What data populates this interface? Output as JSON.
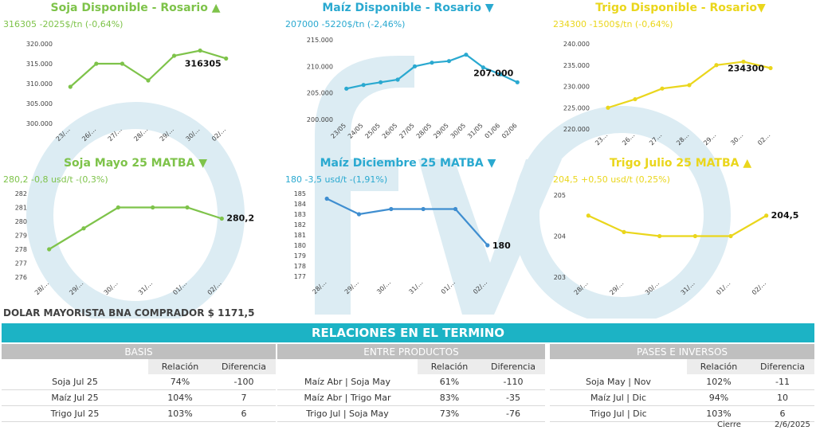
{
  "colors": {
    "soja": "#7ec34a",
    "maiz": "#2aa9d0",
    "trigo": "#ead61c",
    "maiz2": "#3f8ed0",
    "header": "#1cb3c5",
    "watermark": "#dcecf3"
  },
  "chart_data": [
    {
      "type": "line",
      "title": "Soja Disponible - Rosario ▲",
      "subtitle": "316305 -2025$/tn (-0,64%)",
      "categories": [
        "23/…",
        "26/…",
        "27/…",
        "28/…",
        "29/…",
        "30/…",
        "02/…"
      ],
      "values": [
        309200,
        315000,
        315000,
        310800,
        317000,
        318300,
        316305
      ],
      "ylim": [
        300000,
        320000
      ],
      "yticks": [
        "300.000",
        "305.000",
        "310.000",
        "315.000",
        "320.000"
      ],
      "ytickvals": [
        300000,
        305000,
        310000,
        315000,
        320000
      ],
      "last_label": "316305"
    },
    {
      "type": "line",
      "title": "Maíz Disponible - Rosario ▼",
      "subtitle": "207000 -5220$/tn (-2,46%)",
      "categories": [
        "23/05",
        "24/05",
        "25/05",
        "26/05",
        "27/05",
        "28/05",
        "29/05",
        "30/05",
        "31/05",
        "01/06",
        "02/06"
      ],
      "values": [
        205800,
        206500,
        207000,
        207500,
        210000,
        210700,
        211000,
        212200,
        209800,
        208500,
        207000
      ],
      "ylim": [
        200000,
        215000
      ],
      "yticks": [
        "200.000",
        "205.000",
        "210.000",
        "215.000"
      ],
      "ytickvals": [
        200000,
        205000,
        210000,
        215000
      ],
      "last_label": "207.000"
    },
    {
      "type": "line",
      "title": "Trigo Disponible - Rosario▼",
      "subtitle": "234300 -1500$/tn (-0,64%)",
      "categories": [
        "23…",
        "26…",
        "27…",
        "28…",
        "29…",
        "30…",
        "02…"
      ],
      "values": [
        225000,
        227000,
        229500,
        230300,
        235000,
        235800,
        234300
      ],
      "ylim": [
        220000,
        240000
      ],
      "yticks": [
        "220.000",
        "225.000",
        "230.000",
        "235.000",
        "240.000"
      ],
      "ytickvals": [
        220000,
        225000,
        230000,
        235000,
        240000
      ],
      "last_label": "234300"
    },
    {
      "type": "line",
      "title": "Soja Mayo 25 MATBA ▼",
      "subtitle": "280,2 -0,8 usd/t -(0,3%)",
      "categories": [
        "28/…",
        "29/…",
        "30/…",
        "31/…",
        "01/…",
        "02/…"
      ],
      "values": [
        278,
        279.5,
        281,
        281,
        281,
        280.2
      ],
      "ylim": [
        276,
        282
      ],
      "yticks": [
        "276",
        "277",
        "278",
        "279",
        "280",
        "281",
        "282"
      ],
      "ytickvals": [
        276,
        277,
        278,
        279,
        280,
        281,
        282
      ],
      "last_label": "280,2"
    },
    {
      "type": "line",
      "title": "Maíz Diciembre 25 MATBA ▼",
      "subtitle": "180 -3,5 usd/t -(1,91%)",
      "categories": [
        "28/…",
        "29/…",
        "30/…",
        "31/…",
        "01/…",
        "02/…"
      ],
      "values": [
        184.5,
        183,
        183.5,
        183.5,
        183.5,
        180
      ],
      "ylim": [
        177,
        185
      ],
      "yticks": [
        "177",
        "178",
        "179",
        "180",
        "181",
        "182",
        "183",
        "184",
        "185"
      ],
      "ytickvals": [
        177,
        178,
        179,
        180,
        181,
        182,
        183,
        184,
        185
      ],
      "last_label": "180"
    },
    {
      "type": "line",
      "title": "Trigo Julio 25 MATBA ▲",
      "subtitle": "204,5 +0,50 usd/t (0,25%)",
      "categories": [
        "28/…",
        "29/…",
        "30/…",
        "31/…",
        "01/…",
        "02/…"
      ],
      "values": [
        204.5,
        204.1,
        204,
        204,
        204,
        204.5
      ],
      "ylim": [
        203,
        205
      ],
      "yticks": [
        "203",
        "204",
        "205"
      ],
      "ytickvals": [
        203,
        204,
        205
      ],
      "last_label": "204,5"
    }
  ],
  "dolar": "DOLAR MAYORISTA BNA COMPRADOR  $ 1171,5",
  "relaciones_title": "RELACIONES EN EL TERMINO",
  "basis": {
    "title": "BASIS",
    "col1": "Relación",
    "col2": "Diferencia",
    "rows": [
      {
        "label": "Soja Jul 25",
        "rel": "74%",
        "dif": "-100"
      },
      {
        "label": "Maíz Jul 25",
        "rel": "104%",
        "dif": "7"
      },
      {
        "label": "Trigo Jul 25",
        "rel": "103%",
        "dif": "6"
      }
    ]
  },
  "entre": {
    "title": "ENTRE PRODUCTOS",
    "col1": "Relación",
    "col2": "Diferencia",
    "rows": [
      {
        "label": "Maíz Abr | Soja May",
        "rel": "61%",
        "dif": "-110"
      },
      {
        "label": "Maíz Abr | Trigo Mar",
        "rel": "83%",
        "dif": "-35"
      },
      {
        "label": "Trigo Jul | Soja May",
        "rel": "73%",
        "dif": "-76"
      }
    ]
  },
  "pases": {
    "title": "PASES E INVERSOS",
    "col1": "Relación",
    "col2": "Diferencia",
    "rows": [
      {
        "label": "Soja May | Nov",
        "rel": "102%",
        "dif": "-11"
      },
      {
        "label": "Maíz Jul | Dic",
        "rel": "94%",
        "dif": "10"
      },
      {
        "label": "Trigo Jul | Dic",
        "rel": "103%",
        "dif": "6"
      }
    ]
  },
  "footer": {
    "cierre": "Cierre",
    "fecha": "2/6/2025"
  }
}
